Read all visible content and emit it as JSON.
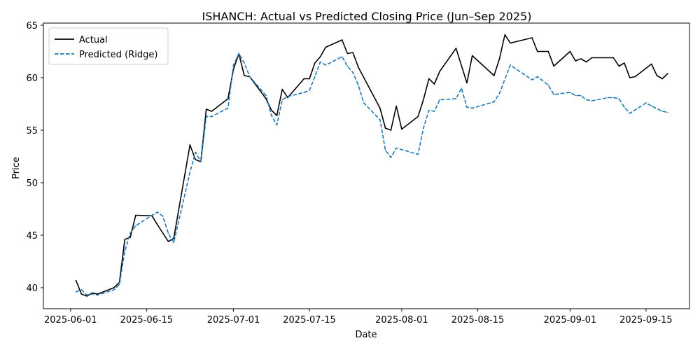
{
  "chart_data": {
    "type": "line",
    "title": "ISHANCH: Actual vs Predicted Closing Price (Jun–Sep 2025)",
    "xlabel": "Date",
    "ylabel": "Price",
    "xlim": [
      "2025-05-27",
      "2025-09-23"
    ],
    "ylim": [
      38,
      65.2
    ],
    "x_ticks": [
      "2025-06-01",
      "2025-06-15",
      "2025-07-01",
      "2025-07-15",
      "2025-08-01",
      "2025-08-15",
      "2025-09-01",
      "2025-09-15"
    ],
    "y_ticks": [
      40,
      45,
      50,
      55,
      60,
      65
    ],
    "grid": false,
    "legend_position": "upper-left",
    "series": [
      {
        "name": "Actual",
        "color": "#000000",
        "style": "solid",
        "points": [
          [
            "2025-06-02",
            40.7
          ],
          [
            "2025-06-03",
            39.4
          ],
          [
            "2025-06-04",
            39.2
          ],
          [
            "2025-06-05",
            39.5
          ],
          [
            "2025-06-06",
            39.4
          ],
          [
            "2025-06-09",
            40.0
          ],
          [
            "2025-06-10",
            40.5
          ],
          [
            "2025-06-11",
            44.6
          ],
          [
            "2025-06-12",
            44.8
          ],
          [
            "2025-06-13",
            46.9
          ],
          [
            "2025-06-16",
            46.85
          ],
          [
            "2025-06-17",
            46.0
          ],
          [
            "2025-06-19",
            44.4
          ],
          [
            "2025-06-20",
            44.7
          ],
          [
            "2025-06-23",
            53.6
          ],
          [
            "2025-06-24",
            52.2
          ],
          [
            "2025-06-25",
            52.0
          ],
          [
            "2025-06-26",
            57.0
          ],
          [
            "2025-06-27",
            56.8
          ],
          [
            "2025-06-30",
            58.0
          ],
          [
            "2025-07-01",
            60.8
          ],
          [
            "2025-07-02",
            62.3
          ],
          [
            "2025-07-03",
            60.2
          ],
          [
            "2025-07-04",
            60.1
          ],
          [
            "2025-07-07",
            58.0
          ],
          [
            "2025-07-08",
            56.9
          ],
          [
            "2025-07-09",
            56.4
          ],
          [
            "2025-07-10",
            58.9
          ],
          [
            "2025-07-11",
            58.1
          ],
          [
            "2025-07-14",
            59.9
          ],
          [
            "2025-07-15",
            59.9
          ],
          [
            "2025-07-16",
            61.4
          ],
          [
            "2025-07-17",
            62.0
          ],
          [
            "2025-07-18",
            62.9
          ],
          [
            "2025-07-21",
            63.6
          ],
          [
            "2025-07-22",
            62.3
          ],
          [
            "2025-07-23",
            62.4
          ],
          [
            "2025-07-24",
            61.0
          ],
          [
            "2025-07-28",
            57.1
          ],
          [
            "2025-07-29",
            55.2
          ],
          [
            "2025-07-30",
            55.0
          ],
          [
            "2025-07-31",
            57.3
          ],
          [
            "2025-08-01",
            55.1
          ],
          [
            "2025-08-04",
            56.3
          ],
          [
            "2025-08-05",
            57.9
          ],
          [
            "2025-08-06",
            59.9
          ],
          [
            "2025-08-07",
            59.4
          ],
          [
            "2025-08-08",
            60.6
          ],
          [
            "2025-08-11",
            62.8
          ],
          [
            "2025-08-13",
            59.5
          ],
          [
            "2025-08-14",
            62.1
          ],
          [
            "2025-08-18",
            60.2
          ],
          [
            "2025-08-19",
            61.8
          ],
          [
            "2025-08-20",
            64.1
          ],
          [
            "2025-08-21",
            63.3
          ],
          [
            "2025-08-25",
            63.8
          ],
          [
            "2025-08-26",
            62.5
          ],
          [
            "2025-08-28",
            62.5
          ],
          [
            "2025-08-29",
            61.1
          ],
          [
            "2025-09-01",
            62.5
          ],
          [
            "2025-09-02",
            61.6
          ],
          [
            "2025-09-03",
            61.8
          ],
          [
            "2025-09-04",
            61.5
          ],
          [
            "2025-09-05",
            61.9
          ],
          [
            "2025-09-09",
            61.9
          ],
          [
            "2025-09-10",
            61.1
          ],
          [
            "2025-09-11",
            61.4
          ],
          [
            "2025-09-12",
            60.0
          ],
          [
            "2025-09-13",
            60.1
          ],
          [
            "2025-09-16",
            61.3
          ],
          [
            "2025-09-17",
            60.2
          ],
          [
            "2025-09-18",
            59.9
          ],
          [
            "2025-09-19",
            60.4
          ]
        ]
      },
      {
        "name": "Predicted (Ridge)",
        "color": "#1f77b4",
        "style": "dashed",
        "points": [
          [
            "2025-06-02",
            39.6
          ],
          [
            "2025-06-03",
            39.8
          ],
          [
            "2025-06-04",
            39.3
          ],
          [
            "2025-06-05",
            39.4
          ],
          [
            "2025-06-06",
            39.3
          ],
          [
            "2025-06-09",
            39.8
          ],
          [
            "2025-06-10",
            40.3
          ],
          [
            "2025-06-11",
            43.5
          ],
          [
            "2025-06-12",
            45.2
          ],
          [
            "2025-06-13",
            45.9
          ],
          [
            "2025-06-16",
            46.9
          ],
          [
            "2025-06-17",
            47.2
          ],
          [
            "2025-06-18",
            46.8
          ],
          [
            "2025-06-19",
            45.2
          ],
          [
            "2025-06-20",
            44.3
          ],
          [
            "2025-06-23",
            51.0
          ],
          [
            "2025-06-24",
            52.9
          ],
          [
            "2025-06-25",
            52.0
          ],
          [
            "2025-06-26",
            56.3
          ],
          [
            "2025-06-27",
            56.3
          ],
          [
            "2025-06-30",
            57.1
          ],
          [
            "2025-07-01",
            61.2
          ],
          [
            "2025-07-02",
            62.3
          ],
          [
            "2025-07-03",
            61.4
          ],
          [
            "2025-07-04",
            60.1
          ],
          [
            "2025-07-07",
            58.3
          ],
          [
            "2025-07-08",
            56.4
          ],
          [
            "2025-07-09",
            55.5
          ],
          [
            "2025-07-10",
            57.9
          ],
          [
            "2025-07-11",
            58.2
          ],
          [
            "2025-07-14",
            58.6
          ],
          [
            "2025-07-15",
            58.8
          ],
          [
            "2025-07-16",
            60.1
          ],
          [
            "2025-07-17",
            61.5
          ],
          [
            "2025-07-18",
            61.2
          ],
          [
            "2025-07-21",
            62.0
          ],
          [
            "2025-07-22",
            61.1
          ],
          [
            "2025-07-23",
            60.5
          ],
          [
            "2025-07-24",
            59.3
          ],
          [
            "2025-07-25",
            57.6
          ],
          [
            "2025-07-28",
            56.0
          ],
          [
            "2025-07-29",
            53.1
          ],
          [
            "2025-07-30",
            52.4
          ],
          [
            "2025-07-31",
            53.3
          ],
          [
            "2025-08-04",
            52.7
          ],
          [
            "2025-08-05",
            55.2
          ],
          [
            "2025-08-06",
            56.9
          ],
          [
            "2025-08-07",
            56.8
          ],
          [
            "2025-08-08",
            57.9
          ],
          [
            "2025-08-11",
            58.0
          ],
          [
            "2025-08-12",
            59.0
          ],
          [
            "2025-08-13",
            57.2
          ],
          [
            "2025-08-14",
            57.1
          ],
          [
            "2025-08-18",
            57.7
          ],
          [
            "2025-08-19",
            58.5
          ],
          [
            "2025-08-21",
            61.2
          ],
          [
            "2025-08-25",
            59.8
          ],
          [
            "2025-08-26",
            60.1
          ],
          [
            "2025-08-28",
            59.3
          ],
          [
            "2025-08-29",
            58.4
          ],
          [
            "2025-09-01",
            58.6
          ],
          [
            "2025-09-02",
            58.3
          ],
          [
            "2025-09-03",
            58.3
          ],
          [
            "2025-09-04",
            57.9
          ],
          [
            "2025-09-05",
            57.8
          ],
          [
            "2025-09-08",
            58.1
          ],
          [
            "2025-09-09",
            58.1
          ],
          [
            "2025-09-10",
            58.0
          ],
          [
            "2025-09-11",
            57.2
          ],
          [
            "2025-09-12",
            56.6
          ],
          [
            "2025-09-15",
            57.6
          ],
          [
            "2025-09-16",
            57.3
          ],
          [
            "2025-09-18",
            56.8
          ],
          [
            "2025-09-19",
            56.7
          ]
        ]
      }
    ]
  }
}
